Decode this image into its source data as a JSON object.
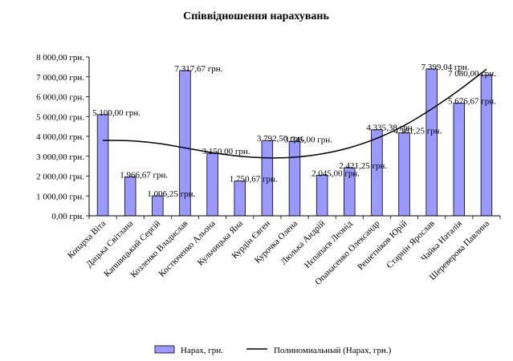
{
  "chart_data": {
    "type": "bar",
    "title": "Співвідношення нарахувань",
    "categories": [
      "Копарха Віта",
      "Дацька Світлана",
      "Капшицький Сергій",
      "Козленко Владислав",
      "Костюченко Альона",
      "Кульчицька Яна",
      "Курдін Євген",
      "Курочка Олена",
      "Люлька Андрій",
      "Нєпапаєв Леонід",
      "Опанасенко Олександр",
      "Решетніков Юрій",
      "Старнін Ярослав",
      "Чайка Наталія",
      "Шереверова Павлина"
    ],
    "series": [
      {
        "name": "Нарах, грн.",
        "color": "#9999ff",
        "values": [
          5100.0,
          1966.67,
          1006.25,
          7317.67,
          3150.0,
          1750.67,
          3792.5,
          3745.0,
          2045.0,
          2421.25,
          4335.38,
          4181.25,
          7399.04,
          5676.67,
          7080.0
        ]
      }
    ],
    "data_labels": [
      "5 100,00 грн.",
      "1 966,67 грн.",
      "1 006,25 грн.",
      "7 317,67 грн.",
      "3 150,00 грн.",
      "1 750,67 грн.",
      "3 792,50 грн.",
      "3 745,00 грн.",
      "2 045,00 грн.",
      "2 421,25 грн.",
      "4 335,38 грн.",
      "4 181,25 грн.",
      "7 399,04 грн.",
      "5 676,67 грн.",
      "7 080,00 грн."
    ],
    "trendline": {
      "name": "Полиномиальный (Нарах, грн.)",
      "color": "#000000",
      "values": [
        3800,
        3780,
        3650,
        3420,
        3180,
        3000,
        2920,
        2950,
        3120,
        3430,
        3900,
        4550,
        5380,
        6330,
        7380
      ]
    },
    "yticks": [
      "0,00 грн.",
      "1 000,00 грн.",
      "2 000,00 грн.",
      "3 000,00 грн.",
      "4 000,00 грн.",
      "5 000,00 грн.",
      "6 000,00 грн.",
      "7 000,00 грн.",
      "8 000,00 грн."
    ],
    "ylim": [
      0,
      8000
    ],
    "grid": false,
    "legend_position": "bottom"
  }
}
